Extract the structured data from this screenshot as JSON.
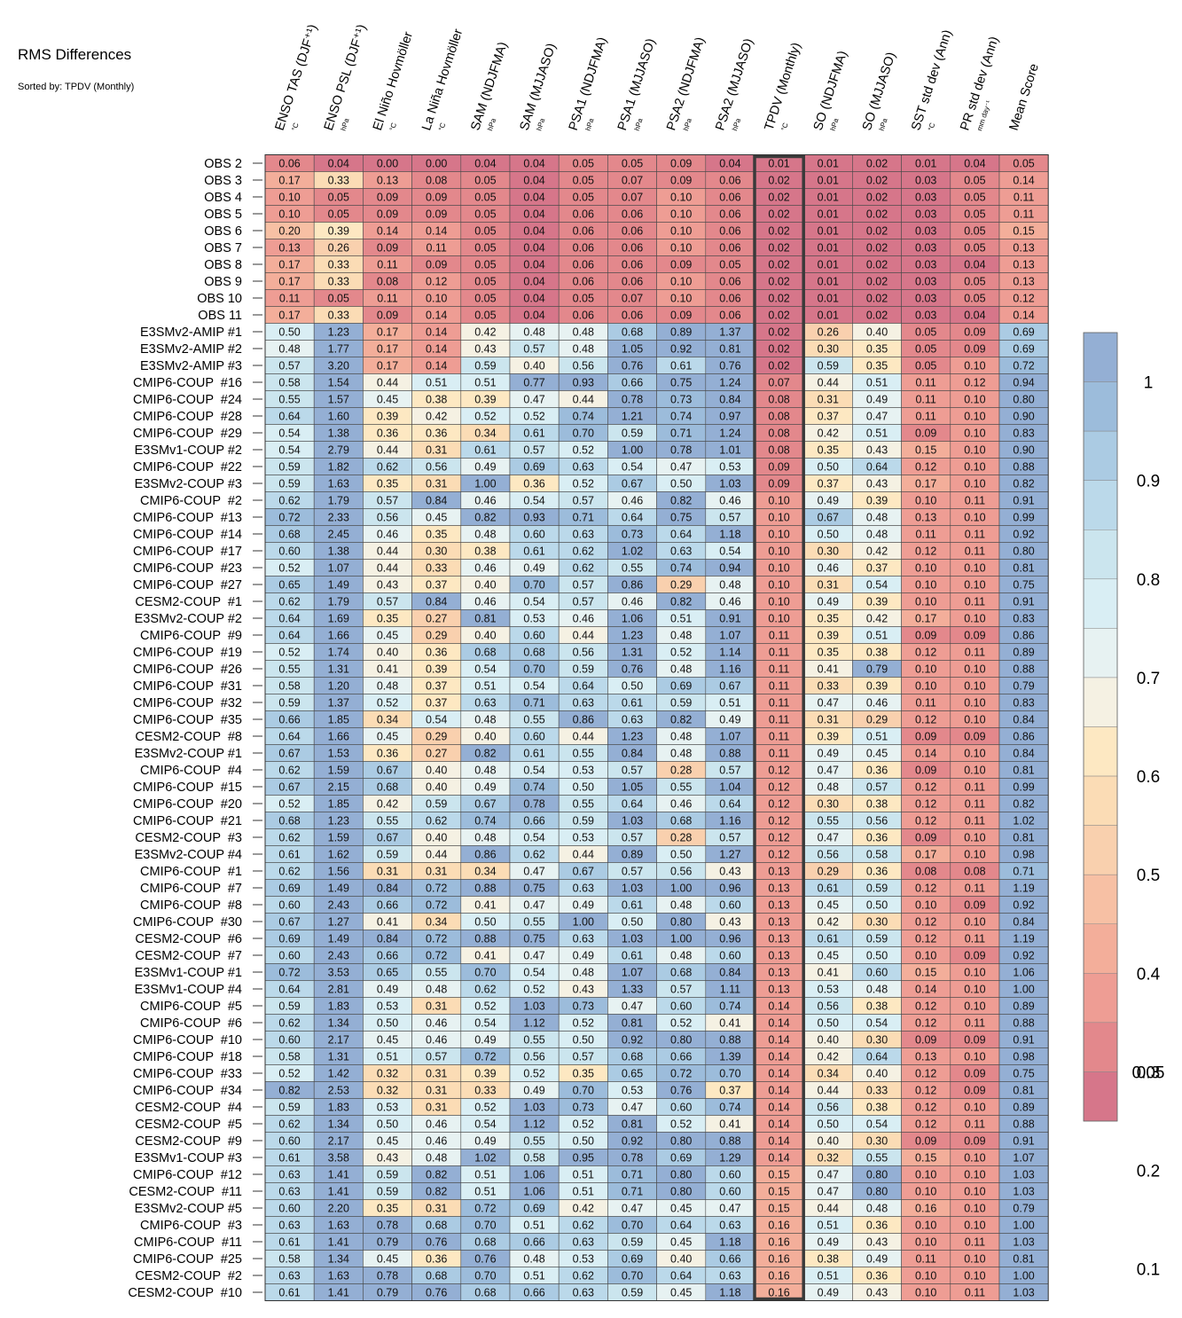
{
  "chart_data": {
    "type": "heatmap",
    "title": "RMS Differences",
    "subtitle": "Sorted by: TPDV (Monthly)",
    "highlight_column": 10,
    "columns": [
      {
        "name": "ENSO TAS (DJF⁺¹)",
        "unit": "°C"
      },
      {
        "name": "ENSO PSL (DJF⁺¹)",
        "unit": "hPa"
      },
      {
        "name": "El Niño Hovmöller",
        "unit": "°C"
      },
      {
        "name": "La Niña Hovmöller",
        "unit": "°C"
      },
      {
        "name": "SAM (NDJFMA)",
        "unit": "hPa"
      },
      {
        "name": "SAM (MJJASO)",
        "unit": "hPa"
      },
      {
        "name": "PSA1 (NDJFMA)",
        "unit": "hPa"
      },
      {
        "name": "PSA1 (MJJASO)",
        "unit": "hPa"
      },
      {
        "name": "PSA2 (NDJFMA)",
        "unit": "hPa"
      },
      {
        "name": "PSA2 (MJJASO)",
        "unit": "hPa"
      },
      {
        "name": "TPDV (Monthly)",
        "unit": "°C"
      },
      {
        "name": "SO (NDJFMA)",
        "unit": "hPa"
      },
      {
        "name": "SO (MJJASO)",
        "unit": "hPa"
      },
      {
        "name": "SST std dev (Ann)",
        "unit": "°C"
      },
      {
        "name": "PR std dev (Ann)",
        "unit": "mm day⁻¹"
      },
      {
        "name": "Mean Score",
        "unit": ""
      }
    ],
    "rows": [
      "OBS 2",
      "OBS 3",
      "OBS 4",
      "OBS 5",
      "OBS 6",
      "OBS 7",
      "OBS 8",
      "OBS 9",
      "OBS 10",
      "OBS 11",
      "E3SMv2-AMIP #1",
      "E3SMv2-AMIP #2",
      "E3SMv2-AMIP #3",
      "CMIP6-COUP  #16",
      "CMIP6-COUP  #24",
      "CMIP6-COUP  #28",
      "CMIP6-COUP  #29",
      "E3SMv1-COUP #2",
      "CMIP6-COUP  #22",
      "E3SMv2-COUP #3",
      "CMIP6-COUP  #2",
      "CMIP6-COUP  #13",
      "CMIP6-COUP  #14",
      "CMIP6-COUP  #17",
      "CMIP6-COUP  #23",
      "CMIP6-COUP  #27",
      "CESM2-COUP  #1",
      "E3SMv2-COUP #2",
      "CMIP6-COUP  #9",
      "CMIP6-COUP  #19",
      "CMIP6-COUP  #26",
      "CMIP6-COUP  #31",
      "CMIP6-COUP  #32",
      "CMIP6-COUP  #35",
      "CESM2-COUP  #8",
      "E3SMv2-COUP #1",
      "CMIP6-COUP  #4",
      "CMIP6-COUP  #15",
      "CMIP6-COUP  #20",
      "CMIP6-COUP  #21",
      "CESM2-COUP  #3",
      "E3SMv2-COUP #4",
      "CMIP6-COUP  #1",
      "CMIP6-COUP  #7",
      "CMIP6-COUP  #8",
      "CMIP6-COUP  #30",
      "CESM2-COUP  #6",
      "CESM2-COUP  #7",
      "E3SMv1-COUP #1",
      "E3SMv1-COUP #4",
      "CMIP6-COUP  #5",
      "CMIP6-COUP  #6",
      "CMIP6-COUP  #10",
      "CMIP6-COUP  #18",
      "CMIP6-COUP  #33",
      "CMIP6-COUP  #34",
      "CESM2-COUP  #4",
      "CESM2-COUP  #5",
      "CESM2-COUP  #9",
      "E3SMv1-COUP #3",
      "CMIP6-COUP  #12",
      "CESM2-COUP  #11",
      "E3SMv2-COUP #5",
      "CMIP6-COUP  #3",
      "CMIP6-COUP  #11",
      "CMIP6-COUP  #25",
      "CESM2-COUP  #2",
      "CESM2-COUP  #10"
    ],
    "values": [
      [
        0.06,
        0.04,
        0.0,
        0.0,
        0.04,
        0.04,
        0.05,
        0.05,
        0.09,
        0.04,
        0.01,
        0.01,
        0.02,
        0.01,
        0.04,
        0.05
      ],
      [
        0.17,
        0.33,
        0.13,
        0.08,
        0.05,
        0.04,
        0.05,
        0.07,
        0.09,
        0.06,
        0.02,
        0.01,
        0.02,
        0.03,
        0.05,
        0.14
      ],
      [
        0.1,
        0.05,
        0.09,
        0.09,
        0.05,
        0.04,
        0.05,
        0.07,
        0.1,
        0.06,
        0.02,
        0.01,
        0.02,
        0.03,
        0.05,
        0.11
      ],
      [
        0.1,
        0.05,
        0.09,
        0.09,
        0.05,
        0.04,
        0.06,
        0.06,
        0.1,
        0.06,
        0.02,
        0.01,
        0.02,
        0.03,
        0.05,
        0.11
      ],
      [
        0.2,
        0.39,
        0.14,
        0.14,
        0.05,
        0.04,
        0.06,
        0.06,
        0.1,
        0.06,
        0.02,
        0.01,
        0.02,
        0.03,
        0.05,
        0.15
      ],
      [
        0.13,
        0.26,
        0.09,
        0.11,
        0.05,
        0.04,
        0.06,
        0.06,
        0.1,
        0.06,
        0.02,
        0.01,
        0.02,
        0.03,
        0.05,
        0.13
      ],
      [
        0.17,
        0.33,
        0.11,
        0.09,
        0.05,
        0.04,
        0.06,
        0.06,
        0.09,
        0.05,
        0.02,
        0.01,
        0.02,
        0.03,
        0.04,
        0.13
      ],
      [
        0.17,
        0.33,
        0.08,
        0.12,
        0.05,
        0.04,
        0.06,
        0.06,
        0.1,
        0.06,
        0.02,
        0.01,
        0.02,
        0.03,
        0.05,
        0.13
      ],
      [
        0.11,
        0.05,
        0.11,
        0.1,
        0.05,
        0.04,
        0.05,
        0.07,
        0.1,
        0.06,
        0.02,
        0.01,
        0.02,
        0.03,
        0.05,
        0.12
      ],
      [
        0.17,
        0.33,
        0.09,
        0.14,
        0.05,
        0.04,
        0.06,
        0.06,
        0.09,
        0.06,
        0.02,
        0.01,
        0.02,
        0.03,
        0.04,
        0.14
      ],
      [
        0.5,
        1.23,
        0.17,
        0.14,
        0.42,
        0.48,
        0.48,
        0.68,
        0.89,
        1.37,
        0.02,
        0.26,
        0.4,
        0.05,
        0.09,
        0.69
      ],
      [
        0.48,
        1.77,
        0.17,
        0.14,
        0.43,
        0.57,
        0.48,
        1.05,
        0.92,
        0.81,
        0.02,
        0.3,
        0.35,
        0.05,
        0.09,
        0.69
      ],
      [
        0.57,
        3.2,
        0.17,
        0.14,
        0.59,
        0.4,
        0.56,
        0.76,
        0.61,
        0.76,
        0.02,
        0.59,
        0.35,
        0.05,
        0.1,
        0.72
      ],
      [
        0.58,
        1.54,
        0.44,
        0.51,
        0.51,
        0.77,
        0.93,
        0.66,
        0.75,
        1.24,
        0.07,
        0.44,
        0.51,
        0.11,
        0.12,
        0.94
      ],
      [
        0.55,
        1.57,
        0.45,
        0.38,
        0.39,
        0.47,
        0.44,
        0.78,
        0.73,
        0.84,
        0.08,
        0.31,
        0.49,
        0.11,
        0.1,
        0.8
      ],
      [
        0.64,
        1.6,
        0.39,
        0.42,
        0.52,
        0.52,
        0.74,
        1.21,
        0.74,
        0.97,
        0.08,
        0.37,
        0.47,
        0.11,
        0.1,
        0.9
      ],
      [
        0.54,
        1.38,
        0.36,
        0.36,
        0.34,
        0.61,
        0.7,
        0.59,
        0.71,
        1.24,
        0.08,
        0.42,
        0.51,
        0.09,
        0.1,
        0.83
      ],
      [
        0.54,
        2.79,
        0.44,
        0.31,
        0.61,
        0.57,
        0.52,
        1.0,
        0.78,
        1.01,
        0.08,
        0.35,
        0.43,
        0.15,
        0.1,
        0.9
      ],
      [
        0.59,
        1.82,
        0.62,
        0.56,
        0.49,
        0.69,
        0.63,
        0.54,
        0.47,
        0.53,
        0.09,
        0.5,
        0.64,
        0.12,
        0.1,
        0.88
      ],
      [
        0.59,
        1.63,
        0.35,
        0.31,
        1.0,
        0.36,
        0.52,
        0.67,
        0.5,
        1.03,
        0.09,
        0.37,
        0.43,
        0.17,
        0.1,
        0.82
      ],
      [
        0.62,
        1.79,
        0.57,
        0.84,
        0.46,
        0.54,
        0.57,
        0.46,
        0.82,
        0.46,
        0.1,
        0.49,
        0.39,
        0.1,
        0.11,
        0.91
      ],
      [
        0.72,
        2.33,
        0.56,
        0.45,
        0.82,
        0.93,
        0.71,
        0.64,
        0.75,
        0.57,
        0.1,
        0.67,
        0.48,
        0.13,
        0.1,
        0.99
      ],
      [
        0.68,
        2.45,
        0.46,
        0.35,
        0.48,
        0.6,
        0.63,
        0.73,
        0.64,
        1.18,
        0.1,
        0.5,
        0.48,
        0.11,
        0.11,
        0.92
      ],
      [
        0.6,
        1.38,
        0.44,
        0.3,
        0.38,
        0.61,
        0.62,
        1.02,
        0.63,
        0.54,
        0.1,
        0.3,
        0.42,
        0.12,
        0.11,
        0.8
      ],
      [
        0.52,
        1.07,
        0.44,
        0.33,
        0.46,
        0.49,
        0.62,
        0.55,
        0.74,
        0.94,
        0.1,
        0.46,
        0.37,
        0.1,
        0.1,
        0.81
      ],
      [
        0.65,
        1.49,
        0.43,
        0.37,
        0.4,
        0.7,
        0.57,
        0.86,
        0.29,
        0.48,
        0.1,
        0.31,
        0.54,
        0.1,
        0.1,
        0.75
      ],
      [
        0.62,
        1.79,
        0.57,
        0.84,
        0.46,
        0.54,
        0.57,
        0.46,
        0.82,
        0.46,
        0.1,
        0.49,
        0.39,
        0.1,
        0.11,
        0.91
      ],
      [
        0.64,
        1.69,
        0.35,
        0.27,
        0.81,
        0.53,
        0.46,
        1.06,
        0.51,
        0.91,
        0.1,
        0.35,
        0.42,
        0.17,
        0.1,
        0.83
      ],
      [
        0.64,
        1.66,
        0.45,
        0.29,
        0.4,
        0.6,
        0.44,
        1.23,
        0.48,
        1.07,
        0.11,
        0.39,
        0.51,
        0.09,
        0.09,
        0.86
      ],
      [
        0.52,
        1.74,
        0.4,
        0.36,
        0.68,
        0.68,
        0.56,
        1.31,
        0.52,
        1.14,
        0.11,
        0.35,
        0.38,
        0.12,
        0.11,
        0.89
      ],
      [
        0.55,
        1.31,
        0.41,
        0.39,
        0.54,
        0.7,
        0.59,
        0.76,
        0.48,
        1.16,
        0.11,
        0.41,
        0.79,
        0.1,
        0.1,
        0.88
      ],
      [
        0.58,
        1.2,
        0.48,
        0.37,
        0.51,
        0.54,
        0.64,
        0.5,
        0.69,
        0.67,
        0.11,
        0.33,
        0.39,
        0.1,
        0.1,
        0.79
      ],
      [
        0.59,
        1.37,
        0.52,
        0.37,
        0.63,
        0.71,
        0.63,
        0.61,
        0.59,
        0.51,
        0.11,
        0.47,
        0.46,
        0.11,
        0.1,
        0.83
      ],
      [
        0.66,
        1.85,
        0.34,
        0.54,
        0.48,
        0.55,
        0.86,
        0.63,
        0.82,
        0.49,
        0.11,
        0.31,
        0.29,
        0.12,
        0.1,
        0.84
      ],
      [
        0.64,
        1.66,
        0.45,
        0.29,
        0.4,
        0.6,
        0.44,
        1.23,
        0.48,
        1.07,
        0.11,
        0.39,
        0.51,
        0.09,
        0.09,
        0.86
      ],
      [
        0.67,
        1.53,
        0.36,
        0.27,
        0.82,
        0.61,
        0.55,
        0.84,
        0.48,
        0.88,
        0.11,
        0.49,
        0.45,
        0.14,
        0.1,
        0.84
      ],
      [
        0.62,
        1.59,
        0.67,
        0.4,
        0.48,
        0.54,
        0.53,
        0.57,
        0.28,
        0.57,
        0.12,
        0.47,
        0.36,
        0.09,
        0.1,
        0.81
      ],
      [
        0.67,
        2.15,
        0.68,
        0.4,
        0.49,
        0.74,
        0.5,
        1.05,
        0.55,
        1.04,
        0.12,
        0.48,
        0.57,
        0.12,
        0.11,
        0.99
      ],
      [
        0.52,
        1.85,
        0.42,
        0.59,
        0.67,
        0.78,
        0.55,
        0.64,
        0.46,
        0.64,
        0.12,
        0.3,
        0.38,
        0.12,
        0.11,
        0.82
      ],
      [
        0.68,
        1.23,
        0.55,
        0.62,
        0.74,
        0.66,
        0.59,
        1.03,
        0.68,
        1.16,
        0.12,
        0.55,
        0.56,
        0.12,
        0.11,
        1.02
      ],
      [
        0.62,
        1.59,
        0.67,
        0.4,
        0.48,
        0.54,
        0.53,
        0.57,
        0.28,
        0.57,
        0.12,
        0.47,
        0.36,
        0.09,
        0.1,
        0.81
      ],
      [
        0.61,
        1.62,
        0.59,
        0.44,
        0.86,
        0.62,
        0.44,
        0.89,
        0.5,
        1.27,
        0.12,
        0.56,
        0.58,
        0.17,
        0.1,
        0.98
      ],
      [
        0.62,
        1.56,
        0.31,
        0.31,
        0.34,
        0.47,
        0.67,
        0.57,
        0.56,
        0.43,
        0.13,
        0.29,
        0.36,
        0.08,
        0.08,
        0.71
      ],
      [
        0.69,
        1.49,
        0.84,
        0.72,
        0.88,
        0.75,
        0.63,
        1.03,
        1.0,
        0.96,
        0.13,
        0.61,
        0.59,
        0.12,
        0.11,
        1.19
      ],
      [
        0.6,
        2.43,
        0.66,
        0.72,
        0.41,
        0.47,
        0.49,
        0.61,
        0.48,
        0.6,
        0.13,
        0.45,
        0.5,
        0.1,
        0.09,
        0.92
      ],
      [
        0.67,
        1.27,
        0.41,
        0.34,
        0.5,
        0.55,
        1.0,
        0.5,
        0.8,
        0.43,
        0.13,
        0.42,
        0.3,
        0.12,
        0.1,
        0.84
      ],
      [
        0.69,
        1.49,
        0.84,
        0.72,
        0.88,
        0.75,
        0.63,
        1.03,
        1.0,
        0.96,
        0.13,
        0.61,
        0.59,
        0.12,
        0.11,
        1.19
      ],
      [
        0.6,
        2.43,
        0.66,
        0.72,
        0.41,
        0.47,
        0.49,
        0.61,
        0.48,
        0.6,
        0.13,
        0.45,
        0.5,
        0.1,
        0.09,
        0.92
      ],
      [
        0.72,
        3.53,
        0.65,
        0.55,
        0.7,
        0.54,
        0.48,
        1.07,
        0.68,
        0.84,
        0.13,
        0.41,
        0.6,
        0.15,
        0.1,
        1.06
      ],
      [
        0.64,
        2.81,
        0.49,
        0.48,
        0.62,
        0.52,
        0.43,
        1.33,
        0.57,
        1.11,
        0.13,
        0.53,
        0.48,
        0.14,
        0.1,
        1.0
      ],
      [
        0.59,
        1.83,
        0.53,
        0.31,
        0.52,
        1.03,
        0.73,
        0.47,
        0.6,
        0.74,
        0.14,
        0.56,
        0.38,
        0.12,
        0.1,
        0.89
      ],
      [
        0.62,
        1.34,
        0.5,
        0.46,
        0.54,
        1.12,
        0.52,
        0.81,
        0.52,
        0.41,
        0.14,
        0.5,
        0.54,
        0.12,
        0.11,
        0.88
      ],
      [
        0.6,
        2.17,
        0.45,
        0.46,
        0.49,
        0.55,
        0.5,
        0.92,
        0.8,
        0.88,
        0.14,
        0.4,
        0.3,
        0.09,
        0.09,
        0.91
      ],
      [
        0.58,
        1.31,
        0.51,
        0.57,
        0.72,
        0.56,
        0.57,
        0.68,
        0.66,
        1.39,
        0.14,
        0.42,
        0.64,
        0.13,
        0.1,
        0.98
      ],
      [
        0.52,
        1.42,
        0.32,
        0.31,
        0.39,
        0.52,
        0.35,
        0.65,
        0.72,
        0.7,
        0.14,
        0.34,
        0.4,
        0.12,
        0.09,
        0.75
      ],
      [
        0.82,
        2.53,
        0.32,
        0.31,
        0.33,
        0.49,
        0.7,
        0.53,
        0.76,
        0.37,
        0.14,
        0.44,
        0.33,
        0.12,
        0.09,
        0.81
      ],
      [
        0.59,
        1.83,
        0.53,
        0.31,
        0.52,
        1.03,
        0.73,
        0.47,
        0.6,
        0.74,
        0.14,
        0.56,
        0.38,
        0.12,
        0.1,
        0.89
      ],
      [
        0.62,
        1.34,
        0.5,
        0.46,
        0.54,
        1.12,
        0.52,
        0.81,
        0.52,
        0.41,
        0.14,
        0.5,
        0.54,
        0.12,
        0.11,
        0.88
      ],
      [
        0.6,
        2.17,
        0.45,
        0.46,
        0.49,
        0.55,
        0.5,
        0.92,
        0.8,
        0.88,
        0.14,
        0.4,
        0.3,
        0.09,
        0.09,
        0.91
      ],
      [
        0.61,
        3.58,
        0.43,
        0.48,
        1.02,
        0.58,
        0.95,
        0.78,
        0.69,
        1.29,
        0.14,
        0.32,
        0.55,
        0.15,
        0.1,
        1.07
      ],
      [
        0.63,
        1.41,
        0.59,
        0.82,
        0.51,
        1.06,
        0.51,
        0.71,
        0.8,
        0.6,
        0.15,
        0.47,
        0.8,
        0.1,
        0.1,
        1.03
      ],
      [
        0.63,
        1.41,
        0.59,
        0.82,
        0.51,
        1.06,
        0.51,
        0.71,
        0.8,
        0.6,
        0.15,
        0.47,
        0.8,
        0.1,
        0.1,
        1.03
      ],
      [
        0.6,
        2.2,
        0.35,
        0.31,
        0.72,
        0.69,
        0.42,
        0.47,
        0.45,
        0.47,
        0.15,
        0.44,
        0.48,
        0.16,
        0.1,
        0.79
      ],
      [
        0.63,
        1.63,
        0.78,
        0.68,
        0.7,
        0.51,
        0.62,
        0.7,
        0.64,
        0.63,
        0.16,
        0.51,
        0.36,
        0.1,
        0.1,
        1.0
      ],
      [
        0.61,
        1.41,
        0.79,
        0.76,
        0.68,
        0.66,
        0.63,
        0.59,
        0.45,
        1.18,
        0.16,
        0.49,
        0.43,
        0.1,
        0.11,
        1.03
      ],
      [
        0.58,
        1.34,
        0.45,
        0.36,
        0.76,
        0.48,
        0.53,
        0.69,
        0.4,
        0.66,
        0.16,
        0.38,
        0.49,
        0.11,
        0.1,
        0.81
      ],
      [
        0.63,
        1.63,
        0.78,
        0.68,
        0.7,
        0.51,
        0.62,
        0.7,
        0.64,
        0.63,
        0.16,
        0.51,
        0.36,
        0.1,
        0.1,
        1.0
      ],
      [
        0.61,
        1.41,
        0.79,
        0.76,
        0.68,
        0.66,
        0.63,
        0.59,
        0.45,
        1.18,
        0.16,
        0.49,
        0.43,
        0.1,
        0.11,
        1.03
      ]
    ],
    "colorbar": {
      "tick_labels": [
        "1",
        "0.9",
        "0.8",
        "0.7",
        "0.6",
        "0.5",
        "0.4",
        "0.3",
        "0.2",
        "0.1",
        "0.05"
      ],
      "bounds": [
        0.05,
        0.1,
        0.15,
        0.2,
        0.25,
        0.3,
        0.35,
        0.4,
        0.45,
        0.5,
        0.55,
        0.6,
        0.65,
        0.7,
        0.75,
        0.8,
        0.85,
        0.9,
        0.95,
        1.0
      ],
      "colors": [
        "#d6768a",
        "#e3888c",
        "#ee9d94",
        "#f3ae9a",
        "#f7c0a4",
        "#f9d0ae",
        "#fbdcb5",
        "#fde8c2",
        "#f5f1e3",
        "#e7f2f2",
        "#d9eef4",
        "#cbe5ee",
        "#bbd9ea",
        "#abcbe3",
        "#9cbcdb",
        "#94afd4"
      ]
    }
  }
}
